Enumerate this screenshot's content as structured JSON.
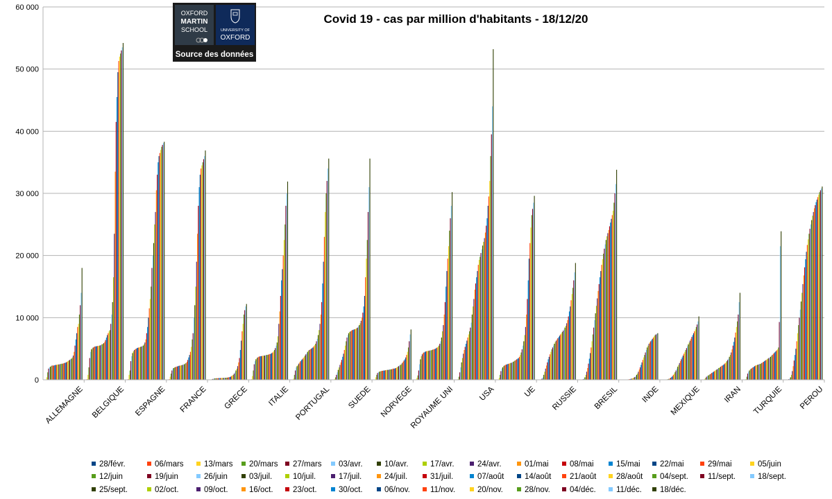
{
  "logo": {
    "oxford_martin_lines": [
      "OXFORD",
      "MARTIN",
      "SCHOOL"
    ],
    "university_small": "UNIVERSITY OF",
    "university_big": "OXFORD",
    "source_label": "Source des données"
  },
  "chart_data": {
    "type": "bar",
    "title": "Covid 19 - cas par million d'habitants - 18/12/20",
    "ylim": [
      0,
      60000
    ],
    "yticks": [
      "0",
      "10 000",
      "20 000",
      "30 000",
      "40 000",
      "50 000",
      "60 000"
    ],
    "grid": "horizontal",
    "legend_position": "bottom",
    "categories": [
      "ALLEMAGNE",
      "BELGIQUE",
      "ESPAGNE",
      "FRANCE",
      "GRECE",
      "ITALIE",
      "PORTUGAL",
      "SUEDE",
      "NORVEGE",
      "ROYAUME UNI",
      "USA",
      "UE",
      "RUSSIE",
      "BRESIL",
      "INDE",
      "MEXIQUE",
      "IRAN",
      "TURQUIE",
      "PEROU"
    ],
    "series": [
      {
        "name": "28/févr.",
        "color": "#004586"
      },
      {
        "name": "06/mars",
        "color": "#ff420e"
      },
      {
        "name": "13/mars",
        "color": "#ffd320"
      },
      {
        "name": "20/mars",
        "color": "#579d1c"
      },
      {
        "name": "27/mars",
        "color": "#7e0021"
      },
      {
        "name": "03/avr.",
        "color": "#83caff"
      },
      {
        "name": "10/avr.",
        "color": "#314004"
      },
      {
        "name": "17/avr.",
        "color": "#aecf00"
      },
      {
        "name": "24/avr.",
        "color": "#4b1f6f"
      },
      {
        "name": "01/mai",
        "color": "#ff950e"
      },
      {
        "name": "08/mai",
        "color": "#c5000b"
      },
      {
        "name": "15/mai",
        "color": "#0084d1"
      },
      {
        "name": "22/mai",
        "color": "#004586"
      },
      {
        "name": "29/mai",
        "color": "#ff420e"
      },
      {
        "name": "05/juin",
        "color": "#ffd320"
      },
      {
        "name": "12/juin",
        "color": "#579d1c"
      },
      {
        "name": "19/juin",
        "color": "#7e0021"
      },
      {
        "name": "26/juin",
        "color": "#83caff"
      },
      {
        "name": "03/juil.",
        "color": "#314004"
      },
      {
        "name": "10/juil.",
        "color": "#aecf00"
      },
      {
        "name": "17/juil.",
        "color": "#4b1f6f"
      },
      {
        "name": "24/juil.",
        "color": "#ff950e"
      },
      {
        "name": "31/juil.",
        "color": "#c5000b"
      },
      {
        "name": "07/août",
        "color": "#0084d1"
      },
      {
        "name": "14/août",
        "color": "#004586"
      },
      {
        "name": "21/août",
        "color": "#ff420e"
      },
      {
        "name": "28/août",
        "color": "#ffd320"
      },
      {
        "name": "04/sept.",
        "color": "#579d1c"
      },
      {
        "name": "11/sept.",
        "color": "#7e0021"
      },
      {
        "name": "18/sept.",
        "color": "#83caff"
      },
      {
        "name": "25/sept.",
        "color": "#314004"
      },
      {
        "name": "02/oct.",
        "color": "#aecf00"
      },
      {
        "name": "09/oct.",
        "color": "#4b1f6f"
      },
      {
        "name": "16/oct.",
        "color": "#ff950e"
      },
      {
        "name": "23/oct.",
        "color": "#c5000b"
      },
      {
        "name": "30/oct.",
        "color": "#0084d1"
      },
      {
        "name": "06/nov.",
        "color": "#004586"
      },
      {
        "name": "11/nov.",
        "color": "#ff420e"
      },
      {
        "name": "20/nov.",
        "color": "#ffd320"
      },
      {
        "name": "28/nov.",
        "color": "#579d1c"
      },
      {
        "name": "04/déc.",
        "color": "#7e0021"
      },
      {
        "name": "11/déc.",
        "color": "#83caff"
      },
      {
        "name": "18/déc.",
        "color": "#314004"
      }
    ],
    "values_by_category": [
      [
        20,
        50,
        400,
        1200,
        1800,
        2000,
        2100,
        2200,
        2300,
        2300,
        2300,
        2350,
        2400,
        2400,
        2450,
        2450,
        2500,
        2500,
        2550,
        2600,
        2600,
        2650,
        2700,
        2750,
        2800,
        2900,
        3000,
        3100,
        3200,
        3300,
        3400,
        3600,
        3900,
        4500,
        5500,
        6500,
        7500,
        8500,
        9000,
        10500,
        12000,
        14000,
        18000
      ],
      [
        20,
        100,
        800,
        2000,
        3500,
        4500,
        4900,
        5100,
        5200,
        5300,
        5350,
        5400,
        5400,
        5450,
        5450,
        5500,
        5550,
        5600,
        5700,
        5800,
        5900,
        6100,
        6400,
        6800,
        7200,
        7500,
        7800,
        8000,
        9000,
        10500,
        12500,
        16500,
        23500,
        33500,
        41500,
        45500,
        49500,
        51300,
        52000,
        52500,
        53000,
        53500,
        54200
      ],
      [
        20,
        100,
        800,
        1500,
        3000,
        3800,
        4300,
        4600,
        4800,
        4900,
        5000,
        5100,
        5150,
        5200,
        5250,
        5300,
        5350,
        5400,
        5500,
        5700,
        6000,
        6500,
        7500,
        8500,
        10000,
        11500,
        13000,
        15000,
        18000,
        20000,
        22000,
        25000,
        27000,
        30500,
        33000,
        35000,
        36000,
        36500,
        37000,
        37500,
        37800,
        38100,
        38300
      ],
      [
        20,
        100,
        500,
        1000,
        1500,
        1800,
        1900,
        2000,
        2050,
        2100,
        2150,
        2200,
        2250,
        2300,
        2300,
        2350,
        2400,
        2450,
        2500,
        2600,
        2700,
        2900,
        3200,
        3600,
        4000,
        4500,
        5300,
        6500,
        7500,
        10000,
        12000,
        15000,
        19000,
        23500,
        28000,
        31000,
        33000,
        34000,
        34500,
        35000,
        35500,
        36000,
        36900
      ],
      [
        5,
        10,
        50,
        100,
        150,
        200,
        220,
        240,
        250,
        250,
        260,
        270,
        280,
        280,
        290,
        300,
        300,
        310,
        320,
        330,
        350,
        380,
        400,
        450,
        500,
        600,
        700,
        800,
        1000,
        1200,
        1500,
        1800,
        2200,
        2800,
        3500,
        4800,
        6300,
        7800,
        9000,
        10500,
        11200,
        11800,
        12200
      ],
      [
        10,
        80,
        600,
        1500,
        2500,
        3000,
        3300,
        3500,
        3600,
        3700,
        3750,
        3800,
        3800,
        3850,
        3850,
        3900,
        3900,
        3950,
        4000,
        4000,
        4050,
        4100,
        4150,
        4200,
        4300,
        4400,
        4600,
        4800,
        5100,
        5500,
        6000,
        7000,
        9000,
        11000,
        13500,
        16000,
        17800,
        20000,
        22500,
        25000,
        28000,
        30000,
        31900
      ],
      [
        10,
        30,
        200,
        800,
        1500,
        2000,
        2200,
        2400,
        2600,
        2800,
        3000,
        3200,
        3300,
        3500,
        3700,
        3900,
        4100,
        4300,
        4500,
        4700,
        4800,
        4900,
        5000,
        5100,
        5200,
        5400,
        5600,
        5800,
        6200,
        6600,
        7200,
        8000,
        9000,
        10500,
        12500,
        15500,
        19000,
        23000,
        27000,
        30000,
        32000,
        34000,
        35600
      ],
      [
        10,
        40,
        150,
        400,
        800,
        1200,
        1600,
        2000,
        2400,
        2800,
        3200,
        3700,
        4200,
        4800,
        5500,
        6200,
        6800,
        7200,
        7500,
        7700,
        7800,
        7900,
        8000,
        8050,
        8100,
        8150,
        8200,
        8300,
        8400,
        8600,
        8800,
        9100,
        9500,
        10000,
        10800,
        11800,
        13500,
        16500,
        19500,
        22500,
        27000,
        31000,
        35600
      ],
      [
        10,
        50,
        400,
        800,
        1100,
        1200,
        1300,
        1350,
        1400,
        1450,
        1450,
        1500,
        1500,
        1550,
        1550,
        1600,
        1600,
        1650,
        1650,
        1700,
        1700,
        1750,
        1800,
        1800,
        1850,
        1900,
        2000,
        2100,
        2200,
        2300,
        2400,
        2500,
        2700,
        2900,
        3100,
        3300,
        3600,
        4000,
        4500,
        5200,
        6200,
        7300,
        8100
      ],
      [
        10,
        60,
        300,
        700,
        1500,
        2500,
        3300,
        3800,
        4100,
        4300,
        4400,
        4500,
        4550,
        4600,
        4650,
        4650,
        4700,
        4700,
        4750,
        4800,
        4850,
        4900,
        4950,
        5000,
        5100,
        5200,
        5300,
        5500,
        5800,
        6200,
        6800,
        7800,
        8800,
        10500,
        12500,
        15000,
        17500,
        19500,
        21500,
        24000,
        26000,
        28000,
        30200
      ],
      [
        10,
        20,
        100,
        500,
        1200,
        2000,
        2800,
        3500,
        4200,
        4800,
        5300,
        5800,
        6300,
        6800,
        7300,
        7800,
        8400,
        9200,
        10500,
        11800,
        13000,
        14500,
        15500,
        16500,
        17500,
        18500,
        19300,
        19800,
        20400,
        21000,
        21600,
        22200,
        22800,
        23700,
        24800,
        26000,
        28000,
        29500,
        32000,
        36000,
        39500,
        44000,
        53200
      ],
      [
        10,
        50,
        300,
        800,
        1400,
        1800,
        2000,
        2200,
        2300,
        2400,
        2450,
        2500,
        2550,
        2600,
        2650,
        2700,
        2750,
        2800,
        2900,
        3000,
        3100,
        3200,
        3300,
        3400,
        3500,
        3700,
        4000,
        4400,
        4900,
        5500,
        6200,
        7200,
        8500,
        10500,
        13000,
        16000,
        19500,
        22000,
        24500,
        26500,
        27500,
        28500,
        29600
      ],
      [
        5,
        10,
        30,
        80,
        200,
        400,
        800,
        1300,
        1800,
        2300,
        2800,
        3300,
        3700,
        4100,
        4500,
        4900,
        5200,
        5500,
        5800,
        6100,
        6300,
        6500,
        6700,
        6900,
        7100,
        7300,
        7500,
        7700,
        7900,
        8100,
        8400,
        8700,
        9100,
        9600,
        10200,
        11000,
        11800,
        12800,
        13800,
        14800,
        16000,
        17300,
        18800
      ],
      [
        5,
        10,
        20,
        50,
        100,
        200,
        400,
        800,
        1300,
        1900,
        2600,
        3400,
        4300,
        5200,
        6200,
        7300,
        8400,
        9600,
        10700,
        11900,
        13100,
        14300,
        15400,
        16500,
        17500,
        18500,
        19400,
        20300,
        21100,
        21800,
        22500,
        23100,
        23600,
        24100,
        24700,
        25300,
        25900,
        26500,
        27200,
        28500,
        30000,
        31500,
        33800
      ],
      [
        0,
        0,
        5,
        10,
        20,
        30,
        40,
        50,
        60,
        80,
        100,
        130,
        170,
        220,
        280,
        350,
        450,
        600,
        800,
        1000,
        1300,
        1650,
        2000,
        2400,
        2800,
        3200,
        3600,
        4000,
        4400,
        4800,
        5200,
        5500,
        5800,
        6000,
        6200,
        6400,
        6600,
        6800,
        7000,
        7200,
        7300,
        7400,
        7500
      ],
      [
        0,
        0,
        5,
        10,
        20,
        40,
        70,
        110,
        160,
        230,
        320,
        440,
        600,
        800,
        1000,
        1250,
        1500,
        1800,
        2100,
        2400,
        2700,
        3000,
        3300,
        3600,
        3900,
        4200,
        4500,
        4800,
        5100,
        5400,
        5700,
        6000,
        6300,
        6600,
        6900,
        7200,
        7500,
        7800,
        8100,
        8500,
        8900,
        9400,
        10200
      ],
      [
        10,
        50,
        150,
        300,
        500,
        600,
        700,
        800,
        900,
        1000,
        1100,
        1200,
        1300,
        1400,
        1500,
        1600,
        1700,
        1800,
        1900,
        2000,
        2100,
        2200,
        2300,
        2400,
        2500,
        2650,
        2800,
        3000,
        3200,
        3400,
        3700,
        4000,
        4400,
        4900,
        5500,
        6100,
        6800,
        7600,
        8500,
        9400,
        10500,
        12500,
        14000
      ],
      [
        0,
        10,
        100,
        500,
        1000,
        1300,
        1500,
        1700,
        1800,
        1900,
        2000,
        2100,
        2200,
        2300,
        2350,
        2400,
        2450,
        2500,
        2550,
        2600,
        2700,
        2800,
        2900,
        3000,
        3100,
        3200,
        3300,
        3400,
        3500,
        3600,
        3700,
        3850,
        4000,
        4150,
        4300,
        4450,
        4600,
        4750,
        4900,
        5200,
        9300,
        21500,
        23900
      ],
      [
        0,
        5,
        20,
        50,
        100,
        200,
        400,
        800,
        1400,
        2200,
        3100,
        4000,
        5000,
        6200,
        7500,
        8800,
        10000,
        11300,
        12600,
        14000,
        15400,
        16800,
        18100,
        19400,
        20600,
        21700,
        22600,
        23500,
        24300,
        25000,
        25700,
        26400,
        27000,
        27600,
        28100,
        28600,
        29000,
        29400,
        29800,
        30200,
        30500,
        30800,
        31100
      ]
    ]
  }
}
